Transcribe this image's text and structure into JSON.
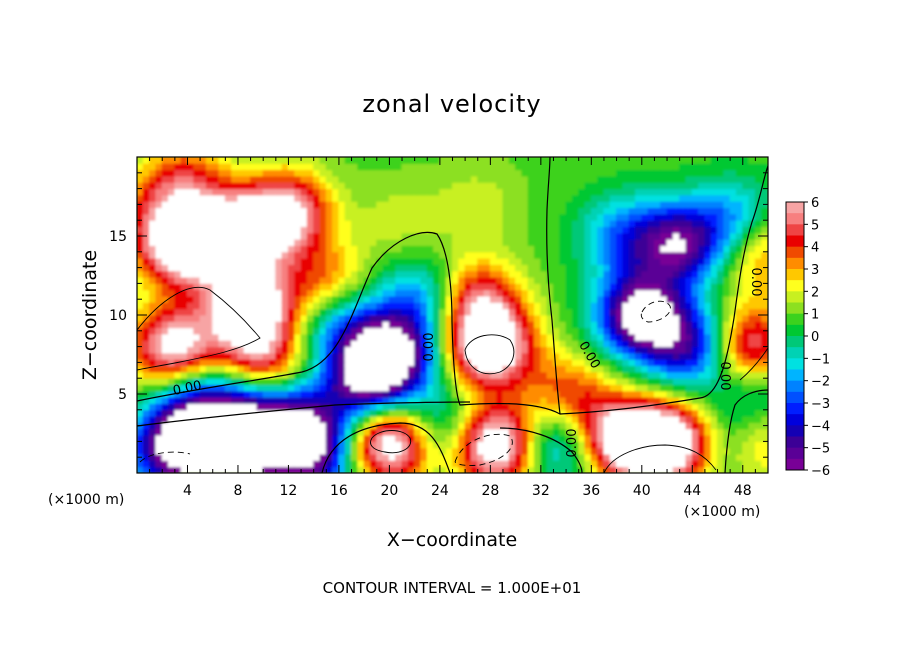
{
  "chart_data": {
    "type": "heatmap",
    "title": "zonal velocity",
    "xlabel": "X−coordinate",
    "ylabel": "Z−coordinate",
    "x_unit": "(×1000 m)",
    "xlim": [
      0,
      50
    ],
    "ylim": [
      0,
      20
    ],
    "x_ticks": [
      4,
      8,
      12,
      16,
      20,
      24,
      28,
      32,
      36,
      40,
      44,
      48
    ],
    "y_ticks": [
      5,
      10,
      15
    ],
    "colorbar": {
      "min": -6,
      "max": 6,
      "tick_labels": [
        "6",
        "5",
        "4",
        "3",
        "2",
        "1",
        "0",
        "−1",
        "−2",
        "−3",
        "−4",
        "−5",
        "−6"
      ],
      "colors": [
        "#f7a4a4",
        "#f77f7f",
        "#ef4444",
        "#e90000",
        "#f04a00",
        "#ff8c00",
        "#ffc800",
        "#ffff1e",
        "#c8f020",
        "#8ce020",
        "#3cd21e",
        "#00c832",
        "#00c878",
        "#00d2b4",
        "#00e1e1",
        "#00b4ff",
        "#0082ff",
        "#0050ff",
        "#001eff",
        "#0000dc",
        "#1400b4",
        "#3c0096",
        "#5a0096",
        "#780096"
      ]
    },
    "contour_labels": [
      "0.00",
      "0.00",
      "0.00",
      "0.00",
      "0.00",
      "0.00"
    ],
    "footer": "CONTOUR INTERVAL = 1.000E+01",
    "blobs": [
      {
        "x": 3.5,
        "z": 14.5,
        "v": 7
      },
      {
        "x": 8,
        "z": 15,
        "v": 7
      },
      {
        "x": 12,
        "z": 16.5,
        "v": 5.5
      },
      {
        "x": 9,
        "z": 10.5,
        "v": 7
      },
      {
        "x": 3,
        "z": 8,
        "v": 6
      },
      {
        "x": 10,
        "z": 7,
        "v": 4
      },
      {
        "x": 15,
        "z": 12,
        "v": 3
      },
      {
        "x": 4,
        "z": 18.5,
        "v": 3
      },
      {
        "x": 1,
        "z": 17,
        "v": 1.5
      },
      {
        "x": 21,
        "z": 16,
        "v": 1
      },
      {
        "x": 27,
        "z": 17,
        "v": 1
      },
      {
        "x": 20,
        "z": 7.5,
        "v": -8
      },
      {
        "x": 18,
        "z": 5.5,
        "v": -5
      },
      {
        "x": 16,
        "z": 9.5,
        "v": -3
      },
      {
        "x": 22.5,
        "z": 11,
        "v": -3
      },
      {
        "x": 5,
        "z": 4,
        "v": -5
      },
      {
        "x": 9,
        "z": 3.5,
        "v": -5
      },
      {
        "x": 13,
        "z": 3,
        "v": -5
      },
      {
        "x": 3,
        "z": 1.5,
        "v": -7
      },
      {
        "x": 8,
        "z": 1,
        "v": -6
      },
      {
        "x": 14,
        "z": 1,
        "v": -5
      },
      {
        "x": 28,
        "z": 8,
        "v": 7
      },
      {
        "x": 27,
        "z": 11,
        "v": 4
      },
      {
        "x": 20,
        "z": 2,
        "v": 7
      },
      {
        "x": 28.5,
        "z": 1.8,
        "v": 7
      },
      {
        "x": 33.5,
        "z": 2,
        "v": -4
      },
      {
        "x": 24,
        "z": 3,
        "v": -2.5
      },
      {
        "x": 38.5,
        "z": 15,
        "v": -3
      },
      {
        "x": 43,
        "z": 14.5,
        "v": -6
      },
      {
        "x": 40,
        "z": 10,
        "v": -8
      },
      {
        "x": 44,
        "z": 8,
        "v": -5
      },
      {
        "x": 47.5,
        "z": 16,
        "v": -3
      },
      {
        "x": 49.5,
        "z": 14,
        "v": 3
      },
      {
        "x": 48.5,
        "z": 8,
        "v": 5
      },
      {
        "x": 49,
        "z": 5,
        "v": -2
      },
      {
        "x": 40.5,
        "z": 1.8,
        "v": 7
      },
      {
        "x": 37,
        "z": 2.5,
        "v": 4
      },
      {
        "x": 44,
        "z": 2,
        "v": 5
      },
      {
        "x": 46.5,
        "z": 2,
        "v": -5
      },
      {
        "x": 48.5,
        "z": 2,
        "v": 4
      },
      {
        "x": 34,
        "z": 5,
        "v": 3
      }
    ]
  }
}
